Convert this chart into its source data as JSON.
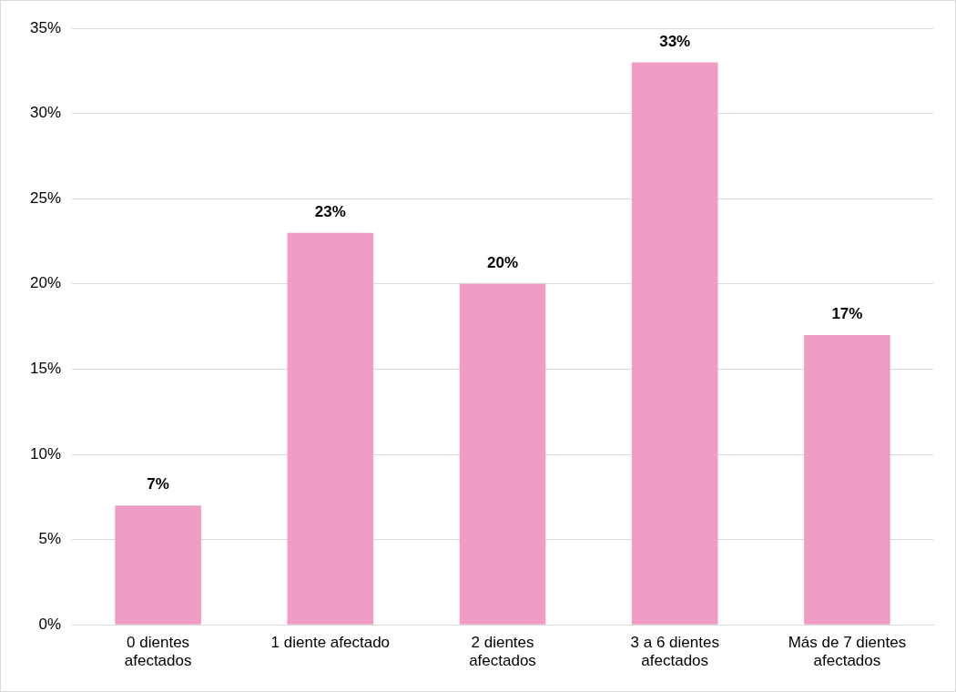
{
  "chart_data": {
    "type": "bar",
    "categories": [
      "0 dientes afectados",
      "1 diente afectado",
      "2 dientes afectados",
      "3 a 6 dientes afectados",
      "Más de 7 dientes afectados"
    ],
    "values": [
      7,
      23,
      20,
      33,
      17
    ],
    "color": "#f09cc4",
    "value_labels": [
      "7%",
      "23%",
      "20%",
      "33%",
      "17%"
    ],
    "ylim": [
      0,
      35
    ],
    "yticks": [
      {
        "value": 0,
        "label": "0%"
      },
      {
        "value": 5,
        "label": "5%"
      },
      {
        "value": 10,
        "label": "10%"
      },
      {
        "value": 15,
        "label": "15%"
      },
      {
        "value": 20,
        "label": "20%"
      },
      {
        "value": 25,
        "label": "25%"
      },
      {
        "value": 30,
        "label": "30%"
      },
      {
        "value": 35,
        "label": "35%"
      }
    ],
    "grid": "y",
    "legend": false
  }
}
